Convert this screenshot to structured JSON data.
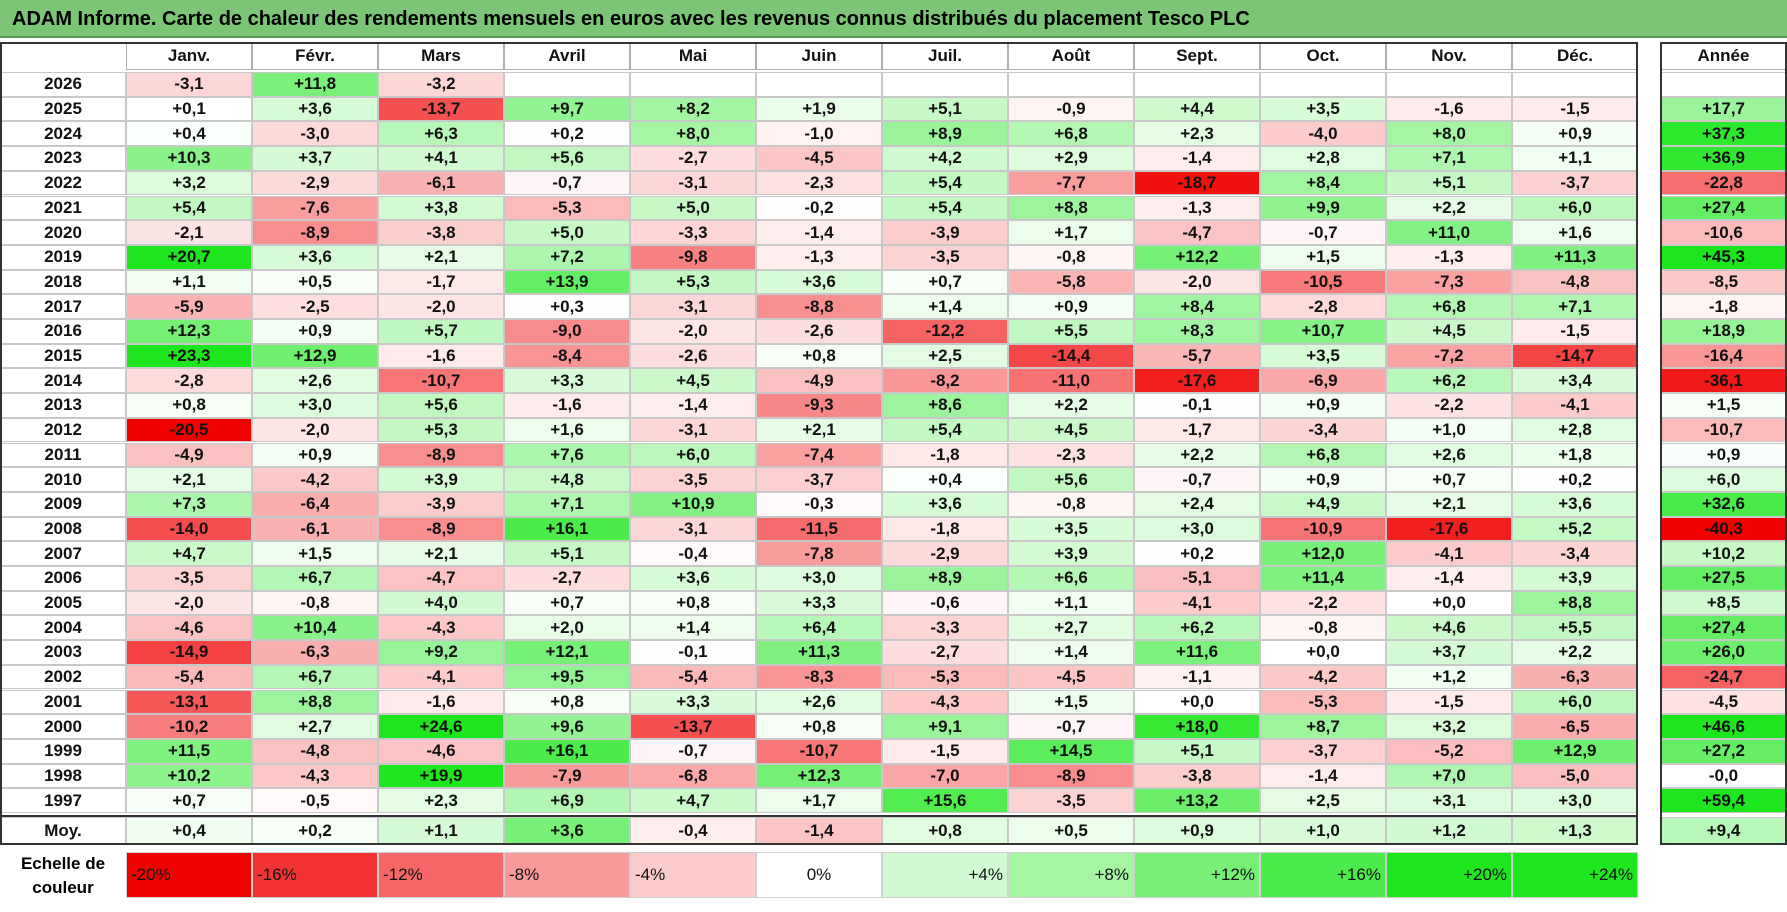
{
  "title": "ADAM Informe. Carte de chaleur des rendements mensuels en euros avec les revenus connus distribués du placement Tesco PLC",
  "months": [
    "Janv.",
    "Févr.",
    "Mars",
    "Avril",
    "Mai",
    "Juin",
    "Juil.",
    "Août",
    "Sept.",
    "Oct.",
    "Nov.",
    "Déc."
  ],
  "annual_header": "Année",
  "avg_label": "Moy.",
  "scale_label_line1": "Echelle de",
  "scale_label_line2": "couleur",
  "chart_data": {
    "type": "heatmap",
    "title": "ADAM Informe. Carte de chaleur des rendements mensuels en euros avec les revenus connus distribués du placement Tesco PLC",
    "rows": [
      {
        "year": "2026",
        "values": [
          "-3,1",
          "+11,8",
          "-3,2",
          "",
          "",
          "",
          "",
          "",
          "",
          "",
          "",
          ""
        ],
        "annual": ""
      },
      {
        "year": "2025",
        "values": [
          "+0,1",
          "+3,6",
          "-13,7",
          "+9,7",
          "+8,2",
          "+1,9",
          "+5,1",
          "-0,9",
          "+4,4",
          "+3,5",
          "-1,6",
          "-1,5"
        ],
        "annual": "+17,7"
      },
      {
        "year": "2024",
        "values": [
          "+0,4",
          "-3,0",
          "+6,3",
          "+0,2",
          "+8,0",
          "-1,0",
          "+8,9",
          "+6,8",
          "+2,3",
          "-4,0",
          "+8,0",
          "+0,9"
        ],
        "annual": "+37,3"
      },
      {
        "year": "2023",
        "values": [
          "+10,3",
          "+3,7",
          "+4,1",
          "+5,6",
          "-2,7",
          "-4,5",
          "+4,2",
          "+2,9",
          "-1,4",
          "+2,8",
          "+7,1",
          "+1,1"
        ],
        "annual": "+36,9"
      },
      {
        "year": "2022",
        "values": [
          "+3,2",
          "-2,9",
          "-6,1",
          "-0,7",
          "-3,1",
          "-2,3",
          "+5,4",
          "-7,7",
          "-18,7",
          "+8,4",
          "+5,1",
          "-3,7"
        ],
        "annual": "-22,8"
      },
      {
        "year": "2021",
        "values": [
          "+5,4",
          "-7,6",
          "+3,8",
          "-5,3",
          "+5,0",
          "-0,2",
          "+5,4",
          "+8,8",
          "-1,3",
          "+9,9",
          "+2,2",
          "+6,0"
        ],
        "annual": "+27,4"
      },
      {
        "year": "2020",
        "values": [
          "-2,1",
          "-8,9",
          "-3,8",
          "+5,0",
          "-3,3",
          "-1,4",
          "-3,9",
          "+1,7",
          "-4,7",
          "-0,7",
          "+11,0",
          "+1,6"
        ],
        "annual": "-10,6"
      },
      {
        "year": "2019",
        "values": [
          "+20,7",
          "+3,6",
          "+2,1",
          "+7,2",
          "-9,8",
          "-1,3",
          "-3,5",
          "-0,8",
          "+12,2",
          "+1,5",
          "-1,3",
          "+11,3"
        ],
        "annual": "+45,3"
      },
      {
        "year": "2018",
        "values": [
          "+1,1",
          "+0,5",
          "-1,7",
          "+13,9",
          "+5,3",
          "+3,6",
          "+0,7",
          "-5,8",
          "-2,0",
          "-10,5",
          "-7,3",
          "-4,8"
        ],
        "annual": "-8,5"
      },
      {
        "year": "2017",
        "values": [
          "-5,9",
          "-2,5",
          "-2,0",
          "+0,3",
          "-3,1",
          "-8,8",
          "+1,4",
          "+0,9",
          "+8,4",
          "-2,8",
          "+6,8",
          "+7,1"
        ],
        "annual": "-1,8"
      },
      {
        "year": "2016",
        "values": [
          "+12,3",
          "+0,9",
          "+5,7",
          "-9,0",
          "-2,0",
          "-2,6",
          "-12,2",
          "+5,5",
          "+8,3",
          "+10,7",
          "+4,5",
          "-1,5"
        ],
        "annual": "+18,9"
      },
      {
        "year": "2015",
        "values": [
          "+23,3",
          "+12,9",
          "-1,6",
          "-8,4",
          "-2,6",
          "+0,8",
          "+2,5",
          "-14,4",
          "-5,7",
          "+3,5",
          "-7,2",
          "-14,7"
        ],
        "annual": "-16,4"
      },
      {
        "year": "2014",
        "values": [
          "-2,8",
          "+2,6",
          "-10,7",
          "+3,3",
          "+4,5",
          "-4,9",
          "-8,2",
          "-11,0",
          "-17,6",
          "-6,9",
          "+6,2",
          "+3,4"
        ],
        "annual": "-36,1"
      },
      {
        "year": "2013",
        "values": [
          "+0,8",
          "+3,0",
          "+5,6",
          "-1,6",
          "-1,4",
          "-9,3",
          "+8,6",
          "+2,2",
          "-0,1",
          "+0,9",
          "-2,2",
          "-4,1"
        ],
        "annual": "+1,5"
      },
      {
        "year": "2012",
        "values": [
          "-20,5",
          "-2,0",
          "+5,3",
          "+1,6",
          "-3,1",
          "+2,1",
          "+5,4",
          "+4,5",
          "-1,7",
          "-3,4",
          "+1,0",
          "+2,8"
        ],
        "annual": "-10,7"
      },
      {
        "year": "2011",
        "values": [
          "-4,9",
          "+0,9",
          "-8,9",
          "+7,6",
          "+6,0",
          "-7,4",
          "-1,8",
          "-2,3",
          "+2,2",
          "+6,8",
          "+2,6",
          "+1,8"
        ],
        "annual": "+0,9"
      },
      {
        "year": "2010",
        "values": [
          "+2,1",
          "-4,2",
          "+3,9",
          "+4,8",
          "-3,5",
          "-3,7",
          "+0,4",
          "+5,6",
          "-0,7",
          "+0,9",
          "+0,7",
          "+0,2"
        ],
        "annual": "+6,0"
      },
      {
        "year": "2009",
        "values": [
          "+7,3",
          "-6,4",
          "-3,9",
          "+7,1",
          "+10,9",
          "-0,3",
          "+3,6",
          "-0,8",
          "+2,4",
          "+4,9",
          "+2,1",
          "+3,6"
        ],
        "annual": "+32,6"
      },
      {
        "year": "2008",
        "values": [
          "-14,0",
          "-6,1",
          "-8,9",
          "+16,1",
          "-3,1",
          "-11,5",
          "-1,8",
          "+3,5",
          "+3,0",
          "-10,9",
          "-17,6",
          "+5,2"
        ],
        "annual": "-40,3"
      },
      {
        "year": "2007",
        "values": [
          "+4,7",
          "+1,5",
          "+2,1",
          "+5,1",
          "-0,4",
          "-7,8",
          "-2,9",
          "+3,9",
          "+0,2",
          "+12,0",
          "-4,1",
          "-3,4"
        ],
        "annual": "+10,2"
      },
      {
        "year": "2006",
        "values": [
          "-3,5",
          "+6,7",
          "-4,7",
          "-2,7",
          "+3,6",
          "+3,0",
          "+8,9",
          "+6,6",
          "-5,1",
          "+11,4",
          "-1,4",
          "+3,9"
        ],
        "annual": "+27,5"
      },
      {
        "year": "2005",
        "values": [
          "-2,0",
          "-0,8",
          "+4,0",
          "+0,7",
          "+0,8",
          "+3,3",
          "-0,6",
          "+1,1",
          "-4,1",
          "-2,2",
          "+0,0",
          "+8,8"
        ],
        "annual": "+8,5"
      },
      {
        "year": "2004",
        "values": [
          "-4,6",
          "+10,4",
          "-4,3",
          "+2,0",
          "+1,4",
          "+6,4",
          "-3,3",
          "+2,7",
          "+6,2",
          "-0,8",
          "+4,6",
          "+5,5"
        ],
        "annual": "+27,4"
      },
      {
        "year": "2003",
        "values": [
          "-14,9",
          "-6,3",
          "+9,2",
          "+12,1",
          "-0,1",
          "+11,3",
          "-2,7",
          "+1,4",
          "+11,6",
          "+0,0",
          "+3,7",
          "+2,2"
        ],
        "annual": "+26,0"
      },
      {
        "year": "2002",
        "values": [
          "-5,4",
          "+6,7",
          "-4,1",
          "+9,5",
          "-5,4",
          "-8,3",
          "-5,3",
          "-4,5",
          "-1,1",
          "-4,2",
          "+1,2",
          "-6,3"
        ],
        "annual": "-24,7"
      },
      {
        "year": "2001",
        "values": [
          "-13,1",
          "+8,8",
          "-1,6",
          "+0,8",
          "+3,3",
          "+2,6",
          "-4,3",
          "+1,5",
          "+0,0",
          "-5,3",
          "-1,5",
          "+6,0"
        ],
        "annual": "-4,5"
      },
      {
        "year": "2000",
        "values": [
          "-10,2",
          "+2,7",
          "+24,6",
          "+9,6",
          "-13,7",
          "+0,8",
          "+9,1",
          "-0,7",
          "+18,0",
          "+8,7",
          "+3,2",
          "-6,5"
        ],
        "annual": "+46,6"
      },
      {
        "year": "1999",
        "values": [
          "+11,5",
          "-4,8",
          "-4,6",
          "+16,1",
          "-0,7",
          "-10,7",
          "-1,5",
          "+14,5",
          "+5,1",
          "-3,7",
          "-5,2",
          "+12,9"
        ],
        "annual": "+27,2"
      },
      {
        "year": "1998",
        "values": [
          "+10,2",
          "-4,3",
          "+19,9",
          "-7,9",
          "-6,8",
          "+12,3",
          "-7,0",
          "-8,9",
          "-3,8",
          "-1,4",
          "+7,0",
          "-5,0"
        ],
        "annual": "-0,0"
      },
      {
        "year": "1997",
        "values": [
          "+0,7",
          "-0,5",
          "+2,3",
          "+6,9",
          "+4,7",
          "+1,7",
          "+15,6",
          "-3,5",
          "+13,2",
          "+2,5",
          "+3,1",
          "+3,0"
        ],
        "annual": "+59,4"
      }
    ],
    "averages": [
      "+0,4",
      "+0,2",
      "+1,1",
      "+3,6",
      "-0,4",
      "-1,4",
      "+0,8",
      "+0,5",
      "+0,9",
      "+1,0",
      "+1,2",
      "+1,3"
    ],
    "average_annual": "+9,4",
    "scale": [
      "-20%",
      "-16%",
      "-12%",
      "-8%",
      "-4%",
      "0%",
      "+4%",
      "+8%",
      "+12%",
      "+16%",
      "+20%",
      "+24%"
    ],
    "scale_values": [
      -20,
      -16,
      -12,
      -8,
      -4,
      0,
      4,
      8,
      12,
      16,
      20,
      24
    ]
  }
}
